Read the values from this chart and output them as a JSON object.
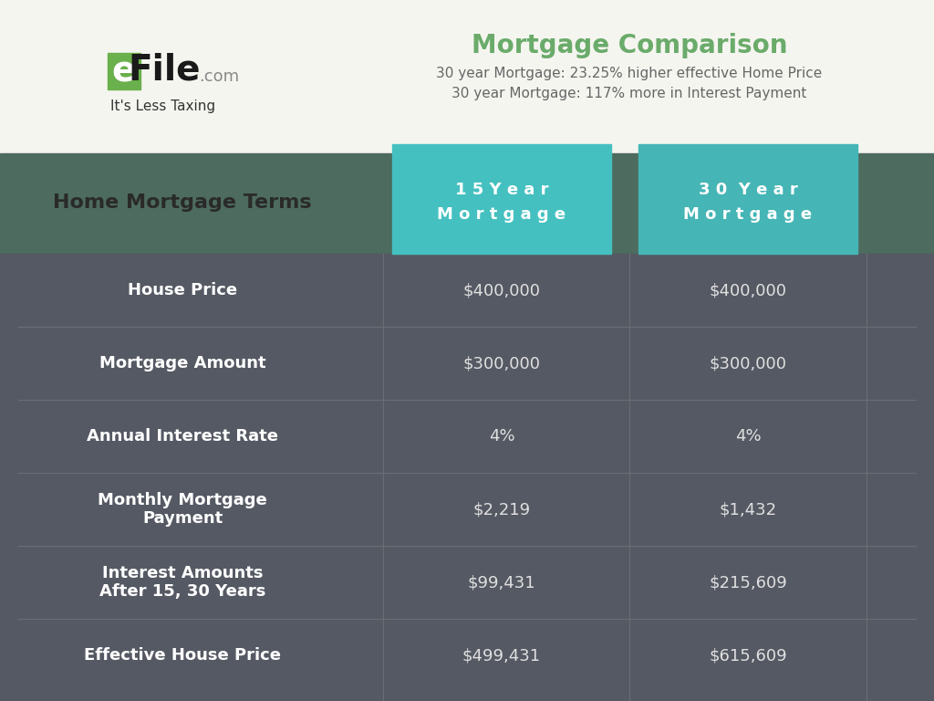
{
  "title": "Mortgage Comparison",
  "subtitle1": "30 year Mortgage: 23.25% higher effective Home Price",
  "subtitle2": "30 year Mortgage: 117% more in Interest Payment",
  "header_label": "Home Mortgage Terms",
  "col1_header_line1": "1 5 Y e a r",
  "col1_header_line2": "M o r t g a g e",
  "col2_header_line1": "3 0  Y e a r",
  "col2_header_line2": "M o r t g a g e",
  "rows": [
    {
      "label": "House Price",
      "col1": "$400,000",
      "col2": "$400,000"
    },
    {
      "label": "Mortgage Amount",
      "col1": "$300,000",
      "col2": "$300,000"
    },
    {
      "label": "Annual Interest Rate",
      "col1": "4%",
      "col2": "4%"
    },
    {
      "label": "Monthly Mortgage\nPayment",
      "col1": "$2,219",
      "col2": "$1,432"
    },
    {
      "label": "Interest Amounts\nAfter 15, 30 Years",
      "col1": "$99,431",
      "col2": "$215,609"
    },
    {
      "label": "Effective House Price",
      "col1": "$499,431",
      "col2": "$615,609"
    }
  ],
  "bg_color": "#f5f5f0",
  "header_row_bg": "#4d6b5e",
  "table_bg": "#555963",
  "col1_header_bg": "#45c0c0",
  "col2_header_bg": "#45b5b5",
  "title_color": "#6aab6a",
  "subtitle_color": "#666666",
  "header_label_color": "#2a2a2a",
  "col_header_text_color": "#ffffff",
  "row_label_color": "#ffffff",
  "row_value_color": "#e0e0e0",
  "logo_box_color": "#6ab04c",
  "logo_file_color": "#1a1a1a",
  "logo_com_color": "#888888",
  "logo_tagline_color": "#333333"
}
